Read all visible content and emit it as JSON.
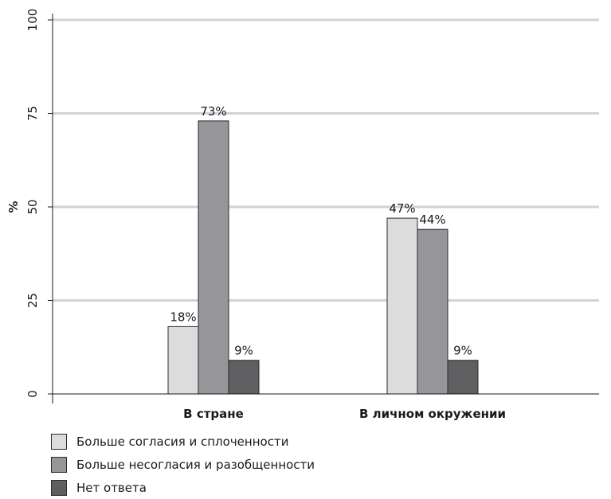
{
  "chart_data": {
    "type": "bar",
    "categories": [
      "В стране",
      "В личном окружении"
    ],
    "series": [
      {
        "name": "Больше согласия и сплоченности",
        "values": [
          18,
          47
        ],
        "color": "#dcdcdc",
        "labels": [
          "18%",
          "47%"
        ]
      },
      {
        "name": "Больше несогласия и разобщенности",
        "values": [
          73,
          44
        ],
        "color": "#95959a",
        "labels": [
          "73%",
          "44%"
        ]
      },
      {
        "name": "Нет ответа",
        "values": [
          9,
          9
        ],
        "color": "#5f5f62",
        "labels": [
          "9%",
          "9%"
        ]
      }
    ],
    "ylabel": "%",
    "xlabel": "",
    "ylim": [
      0,
      100
    ],
    "yticks": [
      0,
      25,
      50,
      75,
      100
    ],
    "ytick_labels": [
      "0",
      "25",
      "50",
      "75",
      "100"
    ],
    "grid": true,
    "legend_position": "bottom-left"
  }
}
